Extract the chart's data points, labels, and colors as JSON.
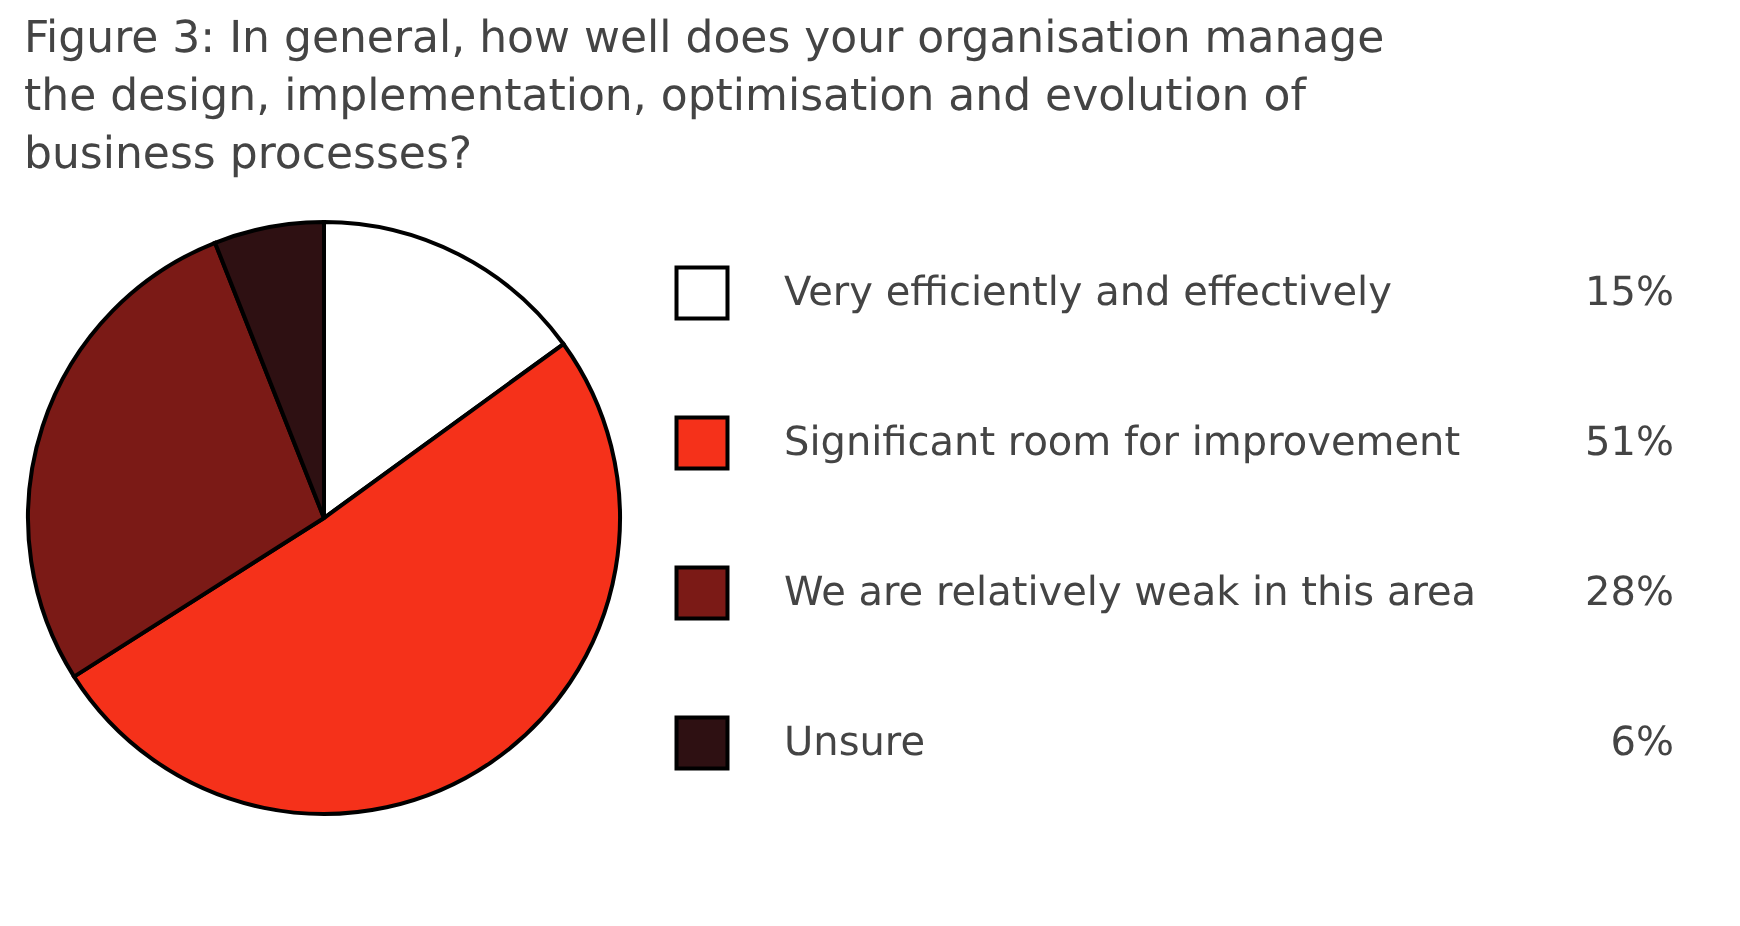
{
  "chart_data": {
    "type": "pie",
    "title": "Figure 3: In general, how well does your organisation manage the design, implementation, optimisation and evolution of business processes?",
    "categories": [
      "Very efficiently and effectively",
      "Significant room for improvement",
      "We are relatively weak in this area",
      "Unsure"
    ],
    "values": [
      15,
      51,
      28,
      6
    ],
    "value_labels": [
      "15%",
      "51%",
      "28%",
      "6%"
    ],
    "colors": [
      "#ffffff",
      "#f5311a",
      "#7b1a16",
      "#2e1012"
    ],
    "legend": "right"
  }
}
